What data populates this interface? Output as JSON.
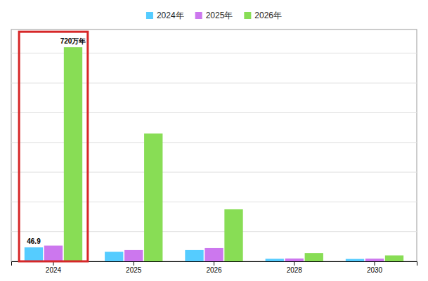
{
  "chart_data": {
    "type": "bar",
    "categories": [
      "2024",
      "2025",
      "2026",
      "2028",
      "2030"
    ],
    "series": [
      {
        "name": "2024年",
        "color": "#55CCFF",
        "values": [
          46.9,
          32.0,
          38.0,
          8.5,
          8.0
        ]
      },
      {
        "name": "2025年",
        "color": "#CC77EE",
        "values": [
          53.0,
          38.0,
          45.0,
          9.5,
          9.0
        ]
      },
      {
        "name": "2026年",
        "color": "#88DD55",
        "values": [
          720.5,
          430.0,
          175.0,
          28.0,
          20.0
        ]
      }
    ],
    "ylim": [
      0,
      780
    ],
    "yticks": [
      0,
      100,
      200,
      300,
      400,
      500,
      600,
      700
    ],
    "grid": true,
    "legend": "top",
    "tick_labels": "x",
    "annotations": [
      {
        "text": "46.9",
        "category": "2024",
        "series": "2024年"
      },
      {
        "text": "720万年",
        "category": "2024",
        "series": "2026年"
      }
    ]
  }
}
